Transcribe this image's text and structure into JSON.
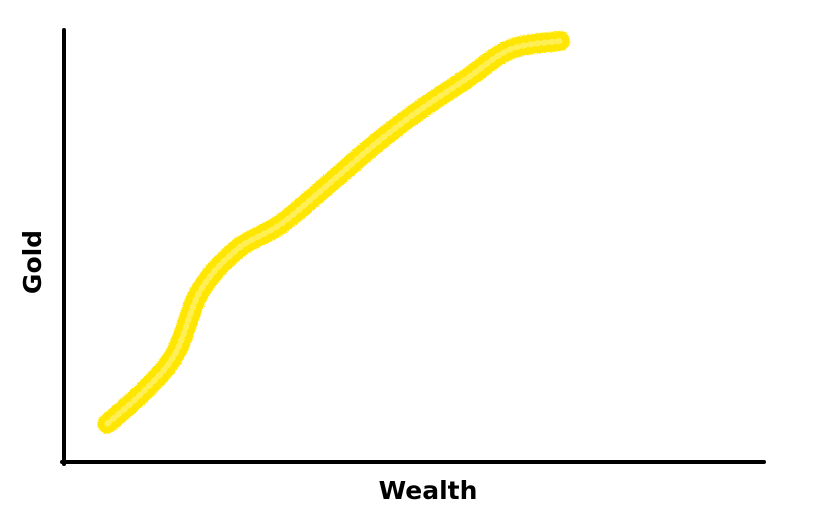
{
  "chart_data": {
    "type": "line",
    "title": "",
    "xlabel": "Wealth",
    "ylabel": "Gold",
    "xlim": [
      0,
      100
    ],
    "ylim": [
      0,
      100
    ],
    "grid": false,
    "ticks": false,
    "series": [
      {
        "color": "#ffe600",
        "x": [
          7,
          13,
          18,
          22,
          28,
          35,
          43,
          50,
          57,
          65,
          72,
          80
        ],
        "y": [
          8,
          16,
          25,
          40,
          50,
          56,
          66,
          75,
          83,
          91,
          98,
          100
        ]
      }
    ]
  }
}
